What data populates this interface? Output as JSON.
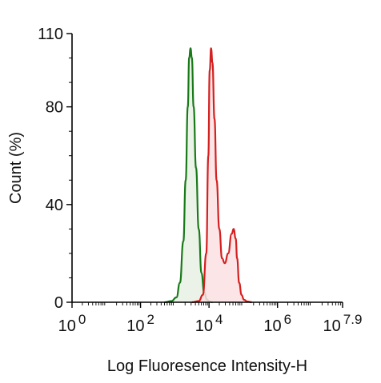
{
  "chart_data": {
    "type": "area",
    "title": "",
    "xlabel": "Log Fluoresence Intensity-H",
    "ylabel": "Count  (%)",
    "x_scale": "log10",
    "xlim": [
      0,
      7.9
    ],
    "ylim": [
      0,
      110
    ],
    "x_ticks": [
      {
        "base": "10",
        "exp": "0",
        "value": 0
      },
      {
        "base": "10",
        "exp": "2",
        "value": 2
      },
      {
        "base": "10",
        "exp": "4",
        "value": 4
      },
      {
        "base": "10",
        "exp": "6",
        "value": 6
      },
      {
        "base": "10",
        "exp": "7.9",
        "value": 7.9
      }
    ],
    "y_ticks": [
      {
        "label": "0",
        "value": 0
      },
      {
        "label": "40",
        "value": 40
      },
      {
        "label": "80",
        "value": 80
      },
      {
        "label": "110",
        "value": 110
      }
    ],
    "grid": false,
    "legend": "none",
    "series": [
      {
        "color": "#1a7a1a",
        "fill": "#e8f1e4",
        "x": [
          2.7,
          2.9,
          3.05,
          3.15,
          3.25,
          3.32,
          3.38,
          3.42,
          3.46,
          3.5,
          3.55,
          3.62,
          3.7,
          3.78,
          3.86,
          3.94,
          4.02,
          4.1
        ],
        "y": [
          0,
          0.5,
          2,
          8,
          25,
          50,
          80,
          100,
          104,
          100,
          80,
          55,
          30,
          12,
          4,
          1,
          0.3,
          0
        ]
      },
      {
        "color": "#d42020",
        "fill": "#fbe1e2",
        "x": [
          3.5,
          3.7,
          3.82,
          3.92,
          3.98,
          4.02,
          4.06,
          4.1,
          4.16,
          4.22,
          4.3,
          4.38,
          4.46,
          4.56,
          4.66,
          4.72,
          4.78,
          4.82,
          4.88,
          4.95,
          5.02,
          5.12,
          5.25
        ],
        "y": [
          0,
          0.5,
          3,
          20,
          60,
          95,
          104,
          98,
          75,
          50,
          30,
          18,
          16,
          20,
          28,
          30,
          26,
          18,
          8,
          3,
          1,
          0.3,
          0
        ]
      }
    ]
  }
}
